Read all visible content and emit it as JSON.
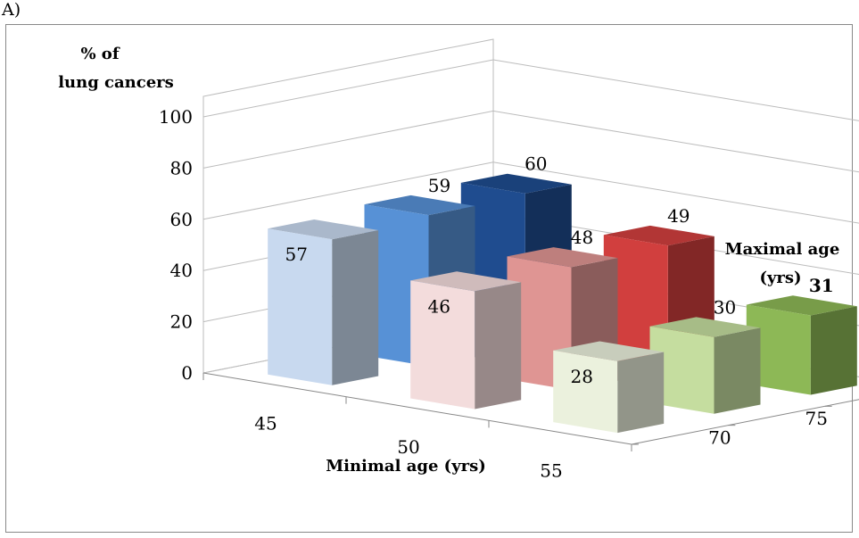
{
  "panel_label": "A)",
  "chart_data": {
    "type": "bar",
    "projection": "3d",
    "title": "",
    "ylabel_lines": [
      "% of",
      "lung cancers"
    ],
    "xlabel": "Minimal age (yrs)",
    "zlabel_lines": [
      "Maximal age",
      "(yrs)"
    ],
    "ylim": [
      0,
      100
    ],
    "yticks": [
      "0",
      "20",
      "40",
      "60",
      "80",
      "100"
    ],
    "categories": [
      "45",
      "50",
      "55"
    ],
    "depth_categories": [
      "70",
      "75",
      "80"
    ],
    "grid": true,
    "legend": "none",
    "series": [
      {
        "minimal_age": "45",
        "values": [
          57,
          59,
          60
        ],
        "labels": [
          "57",
          "59",
          "60"
        ],
        "colors": [
          "#c8d9ef",
          "#5791d6",
          "#1f4c8f"
        ]
      },
      {
        "minimal_age": "50",
        "values": [
          46,
          48,
          49
        ],
        "labels": [
          "46",
          "48",
          "49"
        ],
        "colors": [
          "#f3dcdc",
          "#df9593",
          "#d13f3e"
        ]
      },
      {
        "minimal_age": "55",
        "values": [
          28,
          30,
          31
        ],
        "labels": [
          "28",
          "30",
          "31"
        ],
        "colors": [
          "#ebf1dd",
          "#c5dd9f",
          "#8db856"
        ]
      }
    ],
    "bold_labels": [
      "31"
    ]
  }
}
